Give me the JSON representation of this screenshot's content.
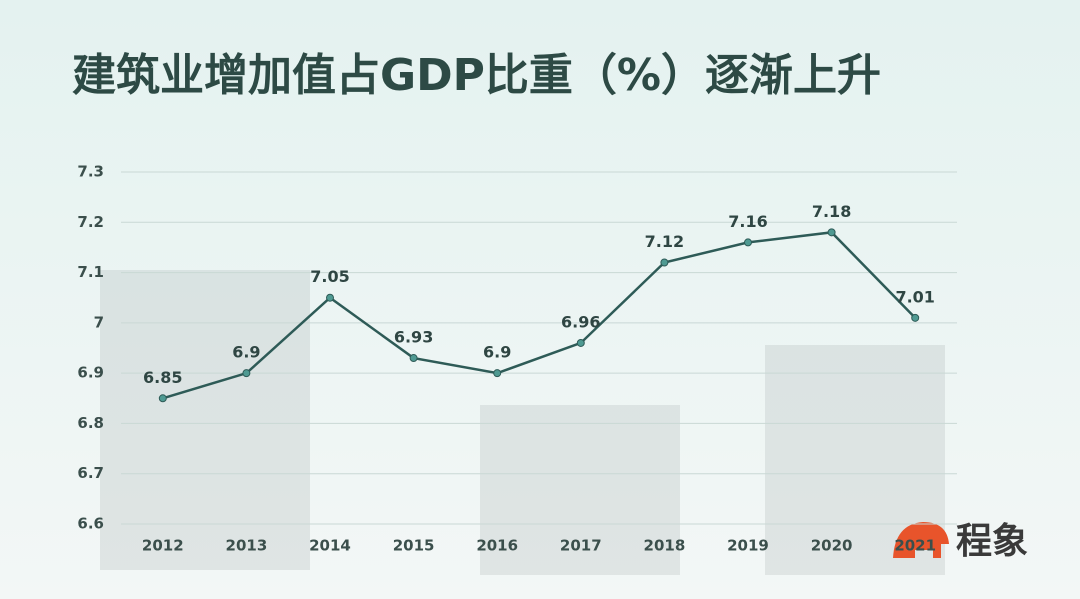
{
  "chart_data": {
    "type": "line",
    "title": "建筑业增加值占GDP比重（%）逐渐上升",
    "categories": [
      "2012",
      "2013",
      "2014",
      "2015",
      "2016",
      "2017",
      "2018",
      "2019",
      "2020",
      "2021"
    ],
    "categories_printed": null,
    "values": [
      6.85,
      6.9,
      7.05,
      6.93,
      6.9,
      6.96,
      7.12,
      7.16,
      7.18,
      7.01
    ],
    "color": "#2e5b57",
    "ylim": [
      6.6,
      7.3
    ],
    "yticks": [
      6.6,
      6.7,
      6.8,
      6.9,
      7,
      7.1,
      7.2,
      7.3
    ],
    "grid": true
  },
  "logo": "程象"
}
